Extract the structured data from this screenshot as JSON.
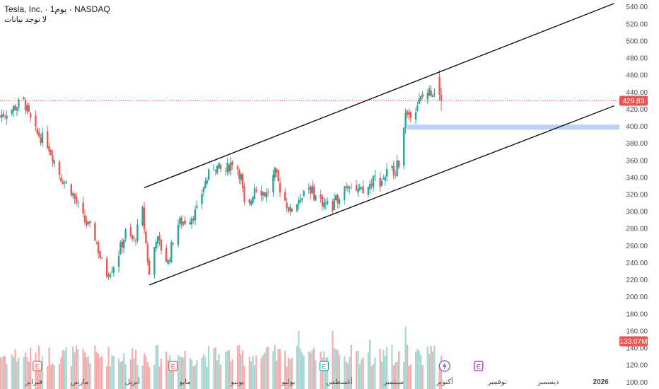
{
  "header": {
    "symbol_line": "Tesla, Inc. · 1يوم · NASDAQ",
    "subline": "لا توجد بيانات"
  },
  "colors": {
    "up": "#26a69a",
    "down": "#ef5350",
    "up_volume": "#a5d6d2",
    "down_volume": "#f7aaa9",
    "price_tag": "#ef5350",
    "zone": "#bcd3f7",
    "channel": "#000000"
  },
  "chart_data": {
    "type": "candlestick",
    "title": "Tesla, Inc. · 1يوم · NASDAQ",
    "ylim": [
      92,
      548
    ],
    "y_ticks": [
      100,
      120,
      140,
      160,
      180,
      200,
      220,
      240,
      260,
      280,
      300,
      320,
      340,
      360,
      380,
      400,
      420,
      440,
      460,
      480,
      500,
      520,
      540
    ],
    "y_tick_labels": [
      "100.00",
      "120.00",
      "140.00",
      "160.00",
      "180.00",
      "200.00",
      "220.00",
      "240.00",
      "260.00",
      "280.00",
      "300.00",
      "320.00",
      "340.00",
      "360.00",
      "380.00",
      "400.00",
      "420.00",
      "440.00",
      "460.00",
      "480.00",
      "500.00",
      "520.00",
      "540.00"
    ],
    "x_ticks": [
      {
        "label": "فبراير",
        "day": 20
      },
      {
        "label": "مارس",
        "day": 47
      },
      {
        "label": "أبريل",
        "day": 78
      },
      {
        "label": "مايو",
        "day": 109
      },
      {
        "label": "يونيو",
        "day": 140
      },
      {
        "label": "يوليو",
        "day": 170
      },
      {
        "label": "أغسطس",
        "day": 200
      },
      {
        "label": "سبتمبر",
        "day": 232
      },
      {
        "label": "أكتوبر",
        "day": 262
      },
      {
        "label": "نوفمبر",
        "day": 293
      },
      {
        "label": "ديسمبر",
        "day": 323
      },
      {
        "label": "2026",
        "day": 354
      }
    ],
    "last_price": 429.83,
    "last_price_label": "429.83",
    "last_volume_label": "133.07M",
    "volume_scale_max": 260,
    "anchors": [
      [
        0,
        412
      ],
      [
        7,
        420
      ],
      [
        14,
        430
      ],
      [
        20,
        395
      ],
      [
        28,
        380
      ],
      [
        36,
        340
      ],
      [
        42,
        325
      ],
      [
        48,
        295
      ],
      [
        56,
        270
      ],
      [
        62,
        225
      ],
      [
        68,
        240
      ],
      [
        74,
        275
      ],
      [
        79,
        265
      ],
      [
        84,
        300
      ],
      [
        88,
        225
      ],
      [
        92,
        270
      ],
      [
        99,
        240
      ],
      [
        104,
        285
      ],
      [
        110,
        290
      ],
      [
        116,
        300
      ],
      [
        120,
        330
      ],
      [
        126,
        355
      ],
      [
        132,
        345
      ],
      [
        138,
        362
      ],
      [
        142,
        340
      ],
      [
        145,
        290
      ],
      [
        150,
        330
      ],
      [
        157,
        320
      ],
      [
        162,
        345
      ],
      [
        166,
        322
      ],
      [
        171,
        300
      ],
      [
        176,
        315
      ],
      [
        181,
        332
      ],
      [
        186,
        318
      ],
      [
        191,
        310
      ],
      [
        196,
        305
      ],
      [
        202,
        328
      ],
      [
        206,
        335
      ],
      [
        210,
        325
      ],
      [
        215,
        320
      ],
      [
        220,
        340
      ],
      [
        224,
        335
      ],
      [
        229,
        348
      ],
      [
        233,
        350
      ],
      [
        236,
        360
      ],
      [
        238,
        405
      ],
      [
        240,
        413
      ],
      [
        244,
        420
      ],
      [
        248,
        432
      ],
      [
        252,
        440
      ],
      [
        256,
        442
      ],
      [
        258,
        448
      ],
      [
        260,
        430
      ]
    ],
    "pivot_candles": [
      {
        "day": 258,
        "open": 432,
        "high": 472,
        "low": 428,
        "close": 458
      },
      {
        "day": 259,
        "open": 458,
        "high": 466,
        "low": 430,
        "close": 437
      },
      {
        "day": 260,
        "open": 437,
        "high": 445,
        "low": 418,
        "close": 429.83
      }
    ],
    "volume_spikes": [
      [
        145,
        208
      ],
      [
        239,
        165
      ],
      [
        176,
        160
      ],
      [
        196,
        160
      ],
      [
        218,
        150
      ],
      [
        250,
        150
      ],
      [
        258,
        165
      ]
    ],
    "channel_upper": [
      [
        85,
        328
      ],
      [
        362,
        544
      ]
    ],
    "channel_lower": [
      [
        88,
        214
      ],
      [
        362,
        424
      ]
    ],
    "horizontal_zone": {
      "from_day": 240,
      "y1": 396,
      "y2": 402
    },
    "earnings_markers": [
      {
        "label": "E",
        "day": 22,
        "color": "#ef5350"
      },
      {
        "label": "E",
        "day": 102,
        "color": "#ef5350"
      },
      {
        "label": "E",
        "day": 191,
        "color": "#26a69a"
      },
      {
        "label": "E",
        "day": 282,
        "color": "#9c27b0"
      }
    ],
    "flash_marker": {
      "day": 262
    },
    "grid": false,
    "legend": "none"
  }
}
